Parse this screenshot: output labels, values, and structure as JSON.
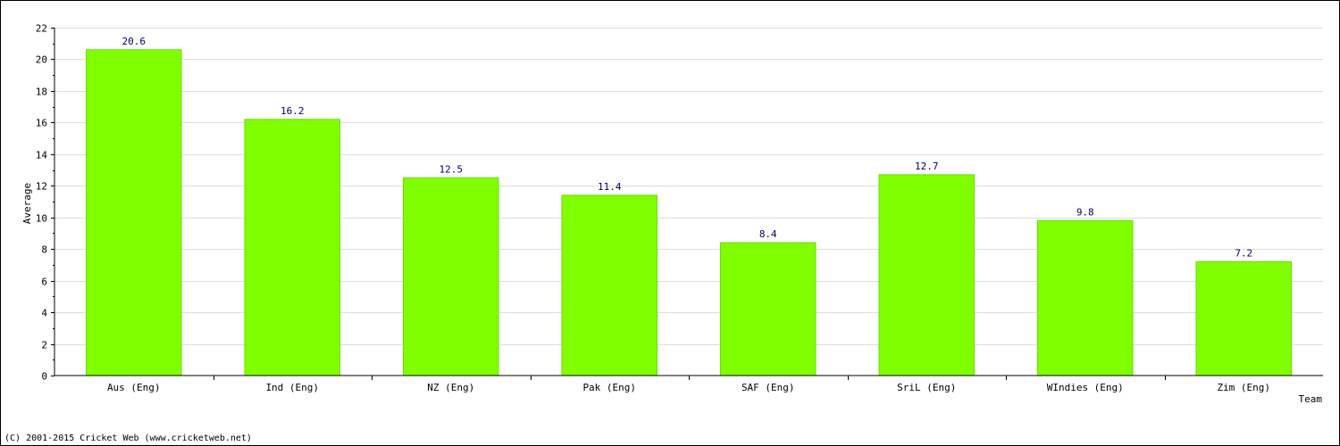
{
  "chart_data": {
    "type": "bar",
    "categories": [
      "Aus (Eng)",
      "Ind (Eng)",
      "NZ (Eng)",
      "Pak (Eng)",
      "SAF (Eng)",
      "SriL (Eng)",
      "WIndies (Eng)",
      "Zim (Eng)"
    ],
    "values": [
      20.6,
      16.2,
      12.5,
      11.4,
      8.4,
      12.7,
      9.8,
      7.2
    ],
    "value_labels": [
      "20.6",
      "16.2",
      "12.5",
      "11.4",
      "8.4",
      "12.7",
      "9.8",
      "7.2"
    ],
    "title": "",
    "xlabel": "Team",
    "ylabel": "Average",
    "ylim": [
      0,
      22
    ],
    "yticks": [
      0,
      2,
      4,
      6,
      8,
      10,
      12,
      14,
      16,
      18,
      20,
      22
    ],
    "grid": true,
    "bar_color": "#80ff00",
    "bar_edge_color": "#66dd00",
    "value_label_color": "#000066"
  },
  "footer": {
    "copyright": "(C) 2001-2015 Cricket Web (www.cricketweb.net)"
  }
}
